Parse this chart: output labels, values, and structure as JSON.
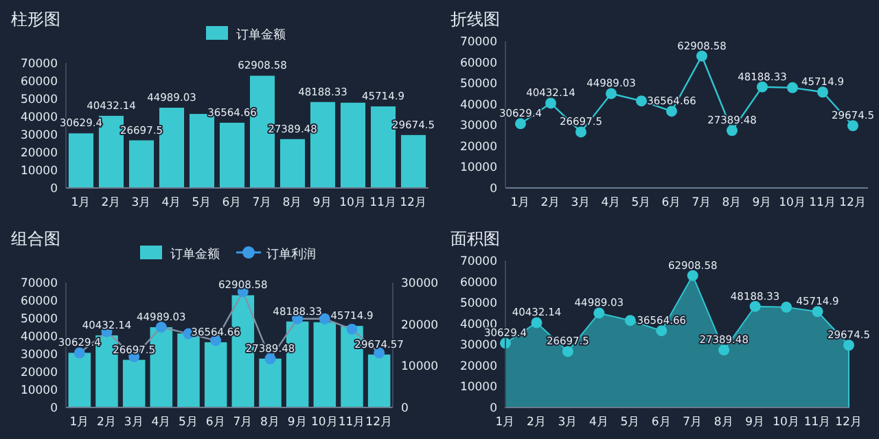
{
  "chart_data": [
    {
      "type": "bar",
      "title": "柱形图",
      "categories": [
        "1月",
        "2月",
        "3月",
        "4月",
        "5月",
        "6月",
        "7月",
        "8月",
        "9月",
        "10月",
        "11月",
        "12月"
      ],
      "legend": "top",
      "ylim": [
        0,
        70000
      ],
      "yticks": [
        0,
        10000,
        20000,
        30000,
        40000,
        50000,
        60000,
        70000
      ],
      "series": [
        {
          "name": "订单金额",
          "color": "#3cc8d0",
          "values": [
            30629.4,
            40432.14,
            26697.5,
            44989.03,
            41500,
            36564.66,
            62908.58,
            27389.48,
            48188.33,
            47800,
            45714.9,
            29674.5
          ],
          "value_labels": [
            "30629.4",
            "40432.14",
            "26697.5",
            "44989.03",
            null,
            "36564.66",
            "62908.58",
            "27389.48",
            "48188.33",
            null,
            "45714.9",
            "29674.5"
          ]
        }
      ]
    },
    {
      "type": "line",
      "title": "折线图",
      "categories": [
        "1月",
        "2月",
        "3月",
        "4月",
        "5月",
        "6月",
        "7月",
        "8月",
        "9月",
        "10月",
        "11月",
        "12月"
      ],
      "marker": "circle",
      "ylim": [
        0,
        70000
      ],
      "yticks": [
        0,
        10000,
        20000,
        30000,
        40000,
        50000,
        60000,
        70000
      ],
      "series": [
        {
          "color": "#2fc6d2",
          "values": [
            30629.4,
            40432.14,
            26697.5,
            44989.03,
            41500,
            36564.66,
            62908.58,
            27389.48,
            48188.33,
            47800,
            45714.9,
            29674.5
          ],
          "value_labels": [
            "30629.4",
            "40432.14",
            "26697.5",
            "44989.03",
            null,
            "36564.66",
            "62908.58",
            "27389.48",
            "48188.33",
            null,
            "45714.9",
            "29674.5"
          ]
        }
      ]
    },
    {
      "type": "bar",
      "title": "组合图",
      "categories": [
        "1月",
        "2月",
        "3月",
        "4月",
        "5月",
        "6月",
        "7月",
        "8月",
        "9月",
        "10月",
        "11月",
        "12月"
      ],
      "legend": "top",
      "marker": "circle",
      "ylim": [
        0,
        70000
      ],
      "yticks": [
        0,
        10000,
        20000,
        30000,
        40000,
        50000,
        60000,
        70000
      ],
      "y2lim": [
        0,
        30000
      ],
      "y2ticks": [
        0,
        10000,
        20000,
        30000
      ],
      "series": [
        {
          "name": "订单金额",
          "color": "#3cc8d0",
          "values": [
            30629.4,
            40432.14,
            26697.5,
            44989.03,
            41500,
            36564.66,
            62908.58,
            27389.48,
            48188.33,
            47800,
            45714.9,
            29674.57
          ],
          "value_labels": [
            "30629.4",
            "40432.14",
            "26697.5",
            "44989.03",
            null,
            "36564.66",
            "62908.58",
            "27389.48",
            "48188.33",
            null,
            "45714.9",
            "29674.57"
          ]
        },
        {
          "name": "订单利润",
          "type": "line",
          "axis": "y2",
          "color": "#3a9ae6",
          "values": [
            13100,
            18200,
            12200,
            19300,
            17700,
            16100,
            27800,
            11700,
            21300,
            21300,
            18800,
            13100
          ]
        }
      ]
    },
    {
      "type": "area",
      "title": "面积图",
      "categories": [
        "1月",
        "2月",
        "3月",
        "4月",
        "5月",
        "6月",
        "7月",
        "8月",
        "9月",
        "10月",
        "11月",
        "12月"
      ],
      "marker": "circle",
      "ylim": [
        0,
        70000
      ],
      "yticks": [
        0,
        10000,
        20000,
        30000,
        40000,
        50000,
        60000,
        70000
      ],
      "series": [
        {
          "color": "#2fc6d2",
          "values": [
            30629.4,
            40432.14,
            26697.5,
            44989.03,
            41500,
            36564.66,
            62908.58,
            27389.48,
            48188.33,
            47800,
            45714.9,
            29674.5
          ],
          "value_labels": [
            "30629.4",
            "40432.14",
            "26697.5",
            "44989.03",
            null,
            "36564.66",
            "62908.58",
            "27389.48",
            "48188.33",
            null,
            "45714.9",
            "29674.5"
          ]
        }
      ]
    }
  ]
}
